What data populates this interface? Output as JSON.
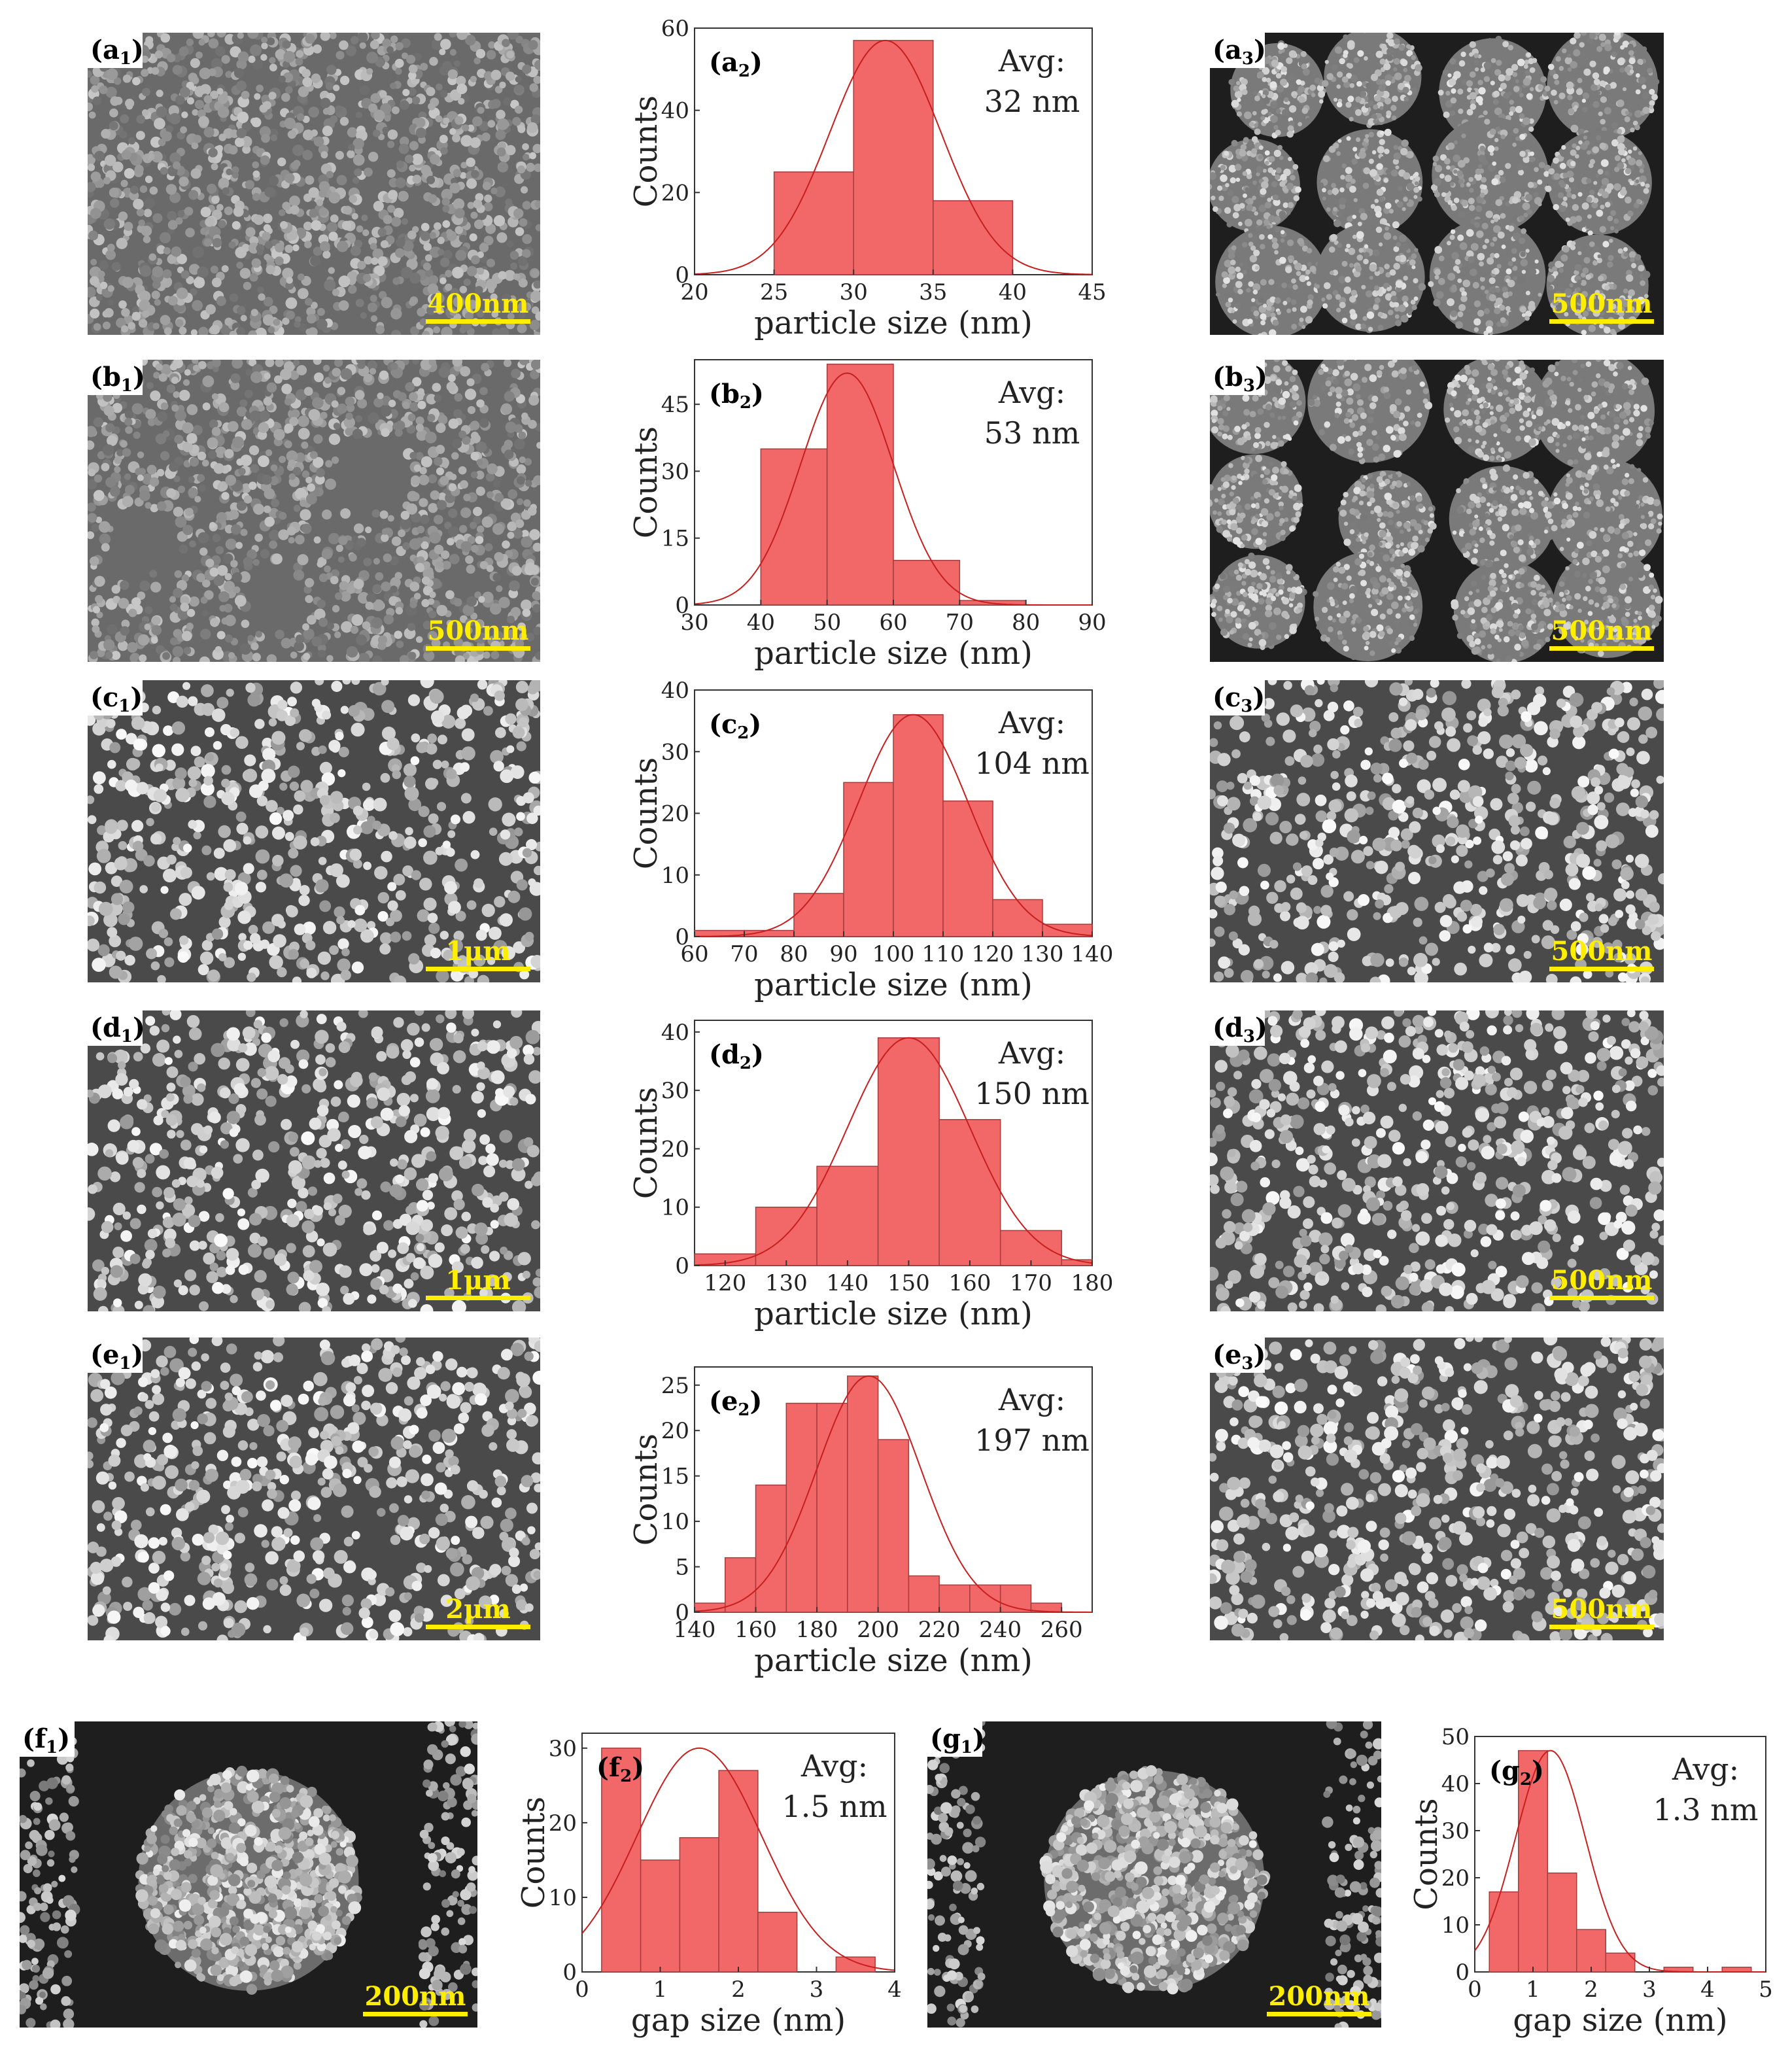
{
  "colors": {
    "bar_fill": "#f26868",
    "bar_stroke": "#a43c3c",
    "curve": "#c81e1e",
    "scalebar": "#ffee00",
    "micrograph_bg": "#5c5c5c"
  },
  "sem_panels": [
    {
      "id": "a1",
      "letter": "a",
      "sub": "1",
      "scale_label": "400nm",
      "style": "packed-gray",
      "icon": "sem-micrograph-icon"
    },
    {
      "id": "a3",
      "letter": "a",
      "sub": "3",
      "scale_label": "500nm",
      "style": "clusters-dark",
      "icon": "sem-micrograph-icon"
    },
    {
      "id": "b1",
      "letter": "b",
      "sub": "1",
      "scale_label": "500nm",
      "style": "packed-gray-holes",
      "icon": "sem-micrograph-icon"
    },
    {
      "id": "b3",
      "letter": "b",
      "sub": "3",
      "scale_label": "500nm",
      "style": "clusters-dark",
      "icon": "sem-micrograph-icon"
    },
    {
      "id": "c1",
      "letter": "c",
      "sub": "1",
      "scale_label": "1μm",
      "style": "spheres-bright",
      "icon": "sem-micrograph-icon"
    },
    {
      "id": "c3",
      "letter": "c",
      "sub": "3",
      "scale_label": "500nm",
      "style": "spheres-bright",
      "icon": "sem-micrograph-icon"
    },
    {
      "id": "d1",
      "letter": "d",
      "sub": "1",
      "scale_label": "1μm",
      "style": "spheres-bright",
      "icon": "sem-micrograph-icon"
    },
    {
      "id": "d3",
      "letter": "d",
      "sub": "3",
      "scale_label": "500nm",
      "style": "spheres-bright",
      "icon": "sem-micrograph-icon"
    },
    {
      "id": "e1",
      "letter": "e",
      "sub": "1",
      "scale_label": "2μm",
      "style": "spheres-bright",
      "icon": "sem-micrograph-icon"
    },
    {
      "id": "e3",
      "letter": "e",
      "sub": "3",
      "scale_label": "500nm",
      "style": "spheres-bright",
      "icon": "sem-micrograph-icon"
    },
    {
      "id": "f1",
      "letter": "f",
      "sub": "1",
      "scale_label": "200nm",
      "style": "single-cluster-dark",
      "icon": "sem-micrograph-icon"
    },
    {
      "id": "g1",
      "letter": "g",
      "sub": "1",
      "scale_label": "200nm",
      "style": "single-cluster-dark",
      "icon": "sem-micrograph-icon"
    }
  ],
  "chart_data": [
    {
      "id": "a2",
      "type": "bar",
      "letter": "a",
      "sub": "2",
      "ylabel": "Counts",
      "xlabel": "particle size (nm)",
      "avg_label": "Avg:",
      "avg_value": "32 nm",
      "xlim": [
        20,
        45
      ],
      "ylim": [
        0,
        60
      ],
      "xticks": [
        20,
        25,
        30,
        35,
        40,
        45
      ],
      "yticks": [
        0,
        20,
        40,
        60
      ],
      "bins": [
        [
          25,
          30,
          25
        ],
        [
          30,
          35,
          57
        ],
        [
          35,
          40,
          18
        ]
      ],
      "fit": {
        "mean": 32,
        "sigma": 3.5,
        "peak": 57
      }
    },
    {
      "id": "b2",
      "type": "bar",
      "letter": "b",
      "sub": "2",
      "ylabel": "Counts",
      "xlabel": "particle size (nm)",
      "avg_label": "Avg:",
      "avg_value": "53 nm",
      "xlim": [
        30,
        90
      ],
      "ylim": [
        0,
        55
      ],
      "xticks": [
        30,
        40,
        50,
        60,
        70,
        80,
        90
      ],
      "yticks": [
        0,
        15,
        30,
        45
      ],
      "bins": [
        [
          40,
          50,
          35
        ],
        [
          50,
          60,
          54
        ],
        [
          60,
          70,
          10
        ],
        [
          70,
          80,
          1
        ]
      ],
      "fit": {
        "mean": 53,
        "sigma": 7,
        "peak": 52
      }
    },
    {
      "id": "c2",
      "type": "bar",
      "letter": "c",
      "sub": "2",
      "ylabel": "Counts",
      "xlabel": "particle size (nm)",
      "avg_label": "Avg:",
      "avg_value": "104 nm",
      "xlim": [
        60,
        140
      ],
      "ylim": [
        0,
        40
      ],
      "xticks": [
        60,
        70,
        80,
        90,
        100,
        110,
        120,
        130,
        140
      ],
      "yticks": [
        0,
        10,
        20,
        30,
        40
      ],
      "bins": [
        [
          60,
          70,
          1
        ],
        [
          70,
          80,
          1
        ],
        [
          80,
          90,
          7
        ],
        [
          90,
          100,
          25
        ],
        [
          100,
          110,
          36
        ],
        [
          110,
          120,
          22
        ],
        [
          120,
          130,
          6
        ],
        [
          130,
          140,
          2
        ]
      ],
      "fit": {
        "mean": 104,
        "sigma": 11,
        "peak": 36
      }
    },
    {
      "id": "d2",
      "type": "bar",
      "letter": "d",
      "sub": "2",
      "ylabel": "Counts",
      "xlabel": "particle size (nm)",
      "avg_label": "Avg:",
      "avg_value": "150 nm",
      "xlim": [
        115,
        180
      ],
      "ylim": [
        0,
        42
      ],
      "xticks": [
        120,
        130,
        140,
        150,
        160,
        170,
        180
      ],
      "yticks": [
        0,
        10,
        20,
        30,
        40
      ],
      "bins": [
        [
          115,
          125,
          2
        ],
        [
          125,
          135,
          10
        ],
        [
          135,
          145,
          17
        ],
        [
          145,
          155,
          39
        ],
        [
          155,
          165,
          25
        ],
        [
          165,
          175,
          6
        ],
        [
          175,
          180,
          1
        ]
      ],
      "fit": {
        "mean": 150,
        "sigma": 10,
        "peak": 39
      }
    },
    {
      "id": "e2",
      "type": "bar",
      "letter": "e",
      "sub": "2",
      "ylabel": "Counts",
      "xlabel": "particle size (nm)",
      "avg_label": "Avg:",
      "avg_value": "197 nm",
      "xlim": [
        140,
        270
      ],
      "ylim": [
        0,
        27
      ],
      "xticks": [
        140,
        160,
        180,
        200,
        220,
        240,
        260
      ],
      "yticks": [
        0,
        5,
        10,
        15,
        20,
        25
      ],
      "bins": [
        [
          140,
          150,
          1
        ],
        [
          150,
          160,
          6
        ],
        [
          160,
          170,
          14
        ],
        [
          170,
          180,
          23
        ],
        [
          180,
          190,
          23
        ],
        [
          190,
          200,
          26
        ],
        [
          200,
          210,
          19
        ],
        [
          210,
          220,
          4
        ],
        [
          220,
          230,
          3
        ],
        [
          230,
          240,
          3
        ],
        [
          240,
          250,
          3
        ],
        [
          250,
          260,
          1
        ]
      ],
      "fit": {
        "mean": 197,
        "sigma": 17,
        "peak": 26
      }
    },
    {
      "id": "f2",
      "type": "bar",
      "letter": "f",
      "sub": "2",
      "ylabel": "Counts",
      "xlabel": "gap size (nm)",
      "avg_label": "Avg:",
      "avg_value": "1.5 nm",
      "xlim": [
        0,
        4
      ],
      "ylim": [
        0,
        32
      ],
      "xticks": [
        0,
        1,
        2,
        3,
        4
      ],
      "yticks": [
        0,
        10,
        20,
        30
      ],
      "bins": [
        [
          0.25,
          0.75,
          30
        ],
        [
          0.75,
          1.25,
          15
        ],
        [
          1.25,
          1.75,
          18
        ],
        [
          1.75,
          2.25,
          27
        ],
        [
          2.25,
          2.75,
          8
        ],
        [
          3.25,
          3.75,
          2
        ]
      ],
      "fit": {
        "mean": 1.5,
        "sigma": 0.8,
        "peak": 30
      }
    },
    {
      "id": "g2",
      "type": "bar",
      "letter": "g",
      "sub": "2",
      "ylabel": "Counts",
      "xlabel": "gap size (nm)",
      "avg_label": "Avg:",
      "avg_value": "1.3 nm",
      "xlim": [
        0,
        5
      ],
      "ylim": [
        0,
        50
      ],
      "xticks": [
        0,
        1,
        2,
        3,
        4,
        5
      ],
      "yticks": [
        0,
        10,
        20,
        30,
        40,
        50
      ],
      "bins": [
        [
          0.25,
          0.75,
          17
        ],
        [
          0.75,
          1.25,
          47
        ],
        [
          1.25,
          1.75,
          21
        ],
        [
          1.75,
          2.25,
          9
        ],
        [
          2.25,
          2.75,
          4
        ],
        [
          3.25,
          3.75,
          1
        ],
        [
          4.25,
          4.75,
          1
        ]
      ],
      "fit": {
        "mean": 1.3,
        "sigma": 0.6,
        "peak": 47
      }
    }
  ]
}
